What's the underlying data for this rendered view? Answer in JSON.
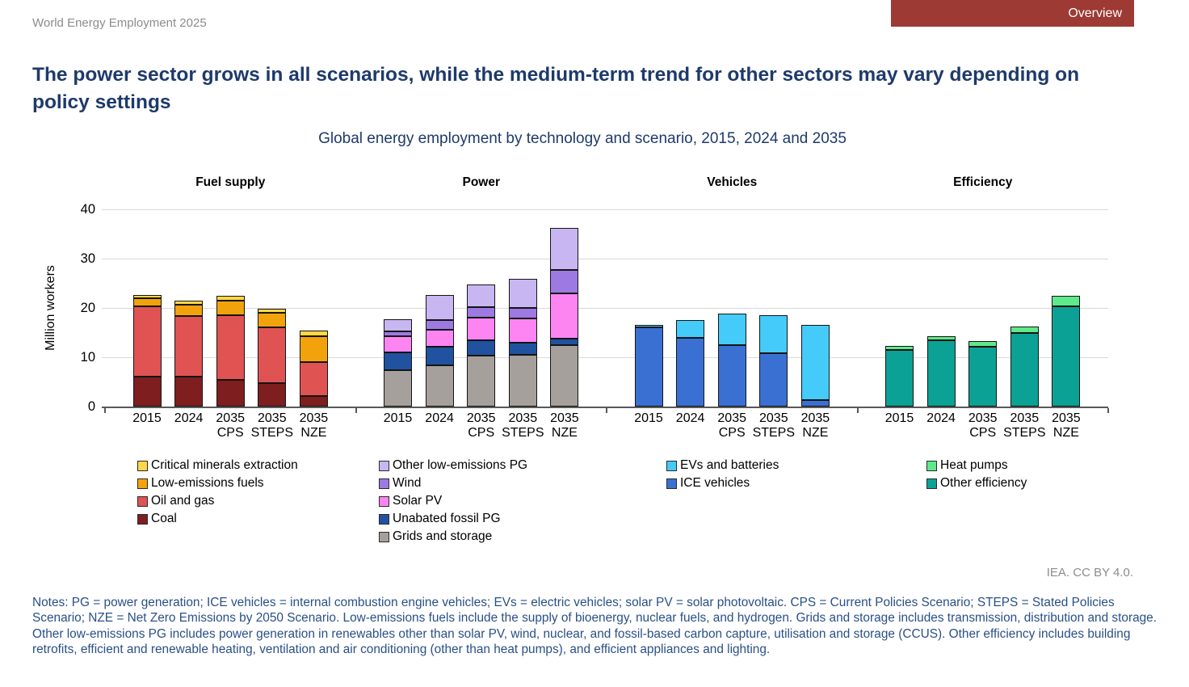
{
  "header": {
    "report_name": "World Energy Employment 2025",
    "overview_label": "Overview",
    "overview_bg": "#9c3a33"
  },
  "title": "The power sector grows in all scenarios, while the medium-term trend for other sectors may vary depending on policy settings",
  "attribution": "IEA. CC BY 4.0.",
  "notes": "Notes: PG = power generation; ICE vehicles = internal combustion engine vehicles; EVs = electric vehicles; solar PV = solar photovoltaic. CPS = Current Policies Scenario; STEPS = Stated Policies Scenario; NZE = Net Zero Emissions by 2050 Scenario. Low-emissions fuels include the supply of bioenergy, nuclear fuels, and hydrogen. Grids and storage includes transmission, distribution and storage. Other low-emissions PG includes power generation in renewables other than solar PV, wind, nuclear, and fossil-based carbon capture, utilisation and storage (CCUS). Other efficiency includes building retrofits, efficient and renewable heating, ventilation and air conditioning (other than heat pumps), and efficient appliances and lighting.",
  "chart_data": {
    "type": "bar",
    "stacked": true,
    "title": "Global energy employment by technology and scenario, 2015, 2024 and 2035",
    "ylabel": "Million workers",
    "ylim": [
      0,
      40
    ],
    "yticks": [
      0,
      10,
      20,
      30,
      40
    ],
    "grid": true,
    "legend_position": "bottom",
    "categories": [
      "2015",
      "2024",
      "2035 CPS",
      "2035 STEPS",
      "2035 NZE"
    ],
    "category_lines": [
      [
        "2015",
        ""
      ],
      [
        "2024",
        ""
      ],
      [
        "2035",
        "CPS"
      ],
      [
        "2035",
        "STEPS"
      ],
      [
        "2035",
        "NZE"
      ]
    ],
    "panels": [
      {
        "title": "Fuel supply",
        "series": [
          {
            "name": "Coal",
            "color": "#7e1e1e",
            "values": [
              6.0,
              6.0,
              5.4,
              4.7,
              2.2
            ]
          },
          {
            "name": "Oil and gas",
            "color": "#e05353",
            "values": [
              14.3,
              12.3,
              13.2,
              11.3,
              6.9
            ]
          },
          {
            "name": "Low-emissions fuels",
            "color": "#f2a30b",
            "values": [
              1.6,
              2.4,
              2.9,
              3.0,
              5.1
            ]
          },
          {
            "name": "Critical minerals extraction",
            "color": "#ffd747",
            "values": [
              0.7,
              0.8,
              1.0,
              0.9,
              1.2
            ]
          }
        ]
      },
      {
        "title": "Power",
        "series": [
          {
            "name": "Grids and storage",
            "color": "#a5a09b",
            "values": [
              7.3,
              8.4,
              10.4,
              10.5,
              12.4
            ]
          },
          {
            "name": "Unabated fossil PG",
            "color": "#2052a0",
            "values": [
              3.7,
              3.7,
              3.1,
              2.5,
              1.3
            ]
          },
          {
            "name": "Solar PV",
            "color": "#fc85f2",
            "values": [
              3.2,
              3.4,
              4.6,
              4.8,
              9.3
            ]
          },
          {
            "name": "Wind",
            "color": "#9c7ae2",
            "values": [
              1.0,
              2.0,
              2.0,
              2.2,
              4.7
            ]
          },
          {
            "name": "Other low-emissions PG",
            "color": "#c8b6f2",
            "values": [
              2.5,
              5.1,
              4.6,
              5.9,
              8.5
            ]
          }
        ]
      },
      {
        "title": "Vehicles",
        "series": [
          {
            "name": "ICE vehicles",
            "color": "#3b70d3",
            "values": [
              16.1,
              13.9,
              12.5,
              10.9,
              1.3
            ]
          },
          {
            "name": "EVs and batteries",
            "color": "#44cbfa",
            "values": [
              0.5,
              3.7,
              6.3,
              7.6,
              15.3
            ]
          }
        ]
      },
      {
        "title": "Efficiency",
        "series": [
          {
            "name": "Other efficiency",
            "color": "#0ca195",
            "values": [
              11.5,
              13.5,
              12.1,
              15.0,
              20.4
            ]
          },
          {
            "name": "Heat pumps",
            "color": "#5fe98a",
            "values": [
              0.8,
              0.8,
              1.2,
              1.3,
              2.1
            ]
          }
        ]
      }
    ]
  }
}
